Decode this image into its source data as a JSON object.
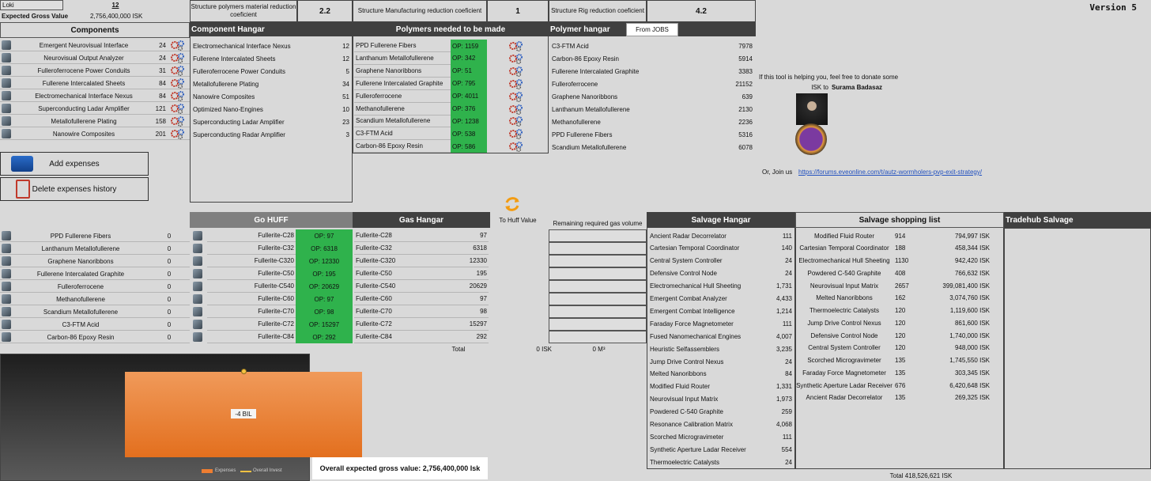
{
  "top": {
    "ship": "Loki",
    "count": 12,
    "expected_label": "Expected Gross Value",
    "expected_value": "2,756,400,000 ISK",
    "version": "Version 5"
  },
  "coefficients": [
    {
      "label": "Structure polymers material reduction coeficient",
      "value": 2.2
    },
    {
      "label": "Structure Manufacturing reduction coeficient",
      "value": 1
    },
    {
      "label": "Structure Rig reduction coeficient",
      "value": 4.2
    }
  ],
  "components": {
    "title": "Components",
    "rows": [
      [
        "Emergent Neurovisual Interface",
        24
      ],
      [
        "Neurovisual Output Analyzer",
        24
      ],
      [
        "Fulleroferrocene Power Conduits",
        31
      ],
      [
        "Fullerene Intercalated Sheets",
        84
      ],
      [
        "Electromechanical Interface Nexus",
        84
      ],
      [
        "Superconducting Ladar Amplifier",
        121
      ],
      [
        "Metallofullerene Plating",
        158
      ],
      [
        "Nanowire Composites",
        201
      ]
    ]
  },
  "buttons": [
    "Add expenses",
    "Delete expenses history"
  ],
  "component_hangar": {
    "title": "Component Hangar",
    "rows": [
      [
        "Electromechanical Interface Nexus",
        12
      ],
      [
        "Fullerene Intercalated Sheets",
        12
      ],
      [
        "Fulleroferrocene Power Conduits",
        5
      ],
      [
        "Metallofullerene Plating",
        34
      ],
      [
        "Nanowire Composites",
        51
      ],
      [
        "Optimized Nano-Engines",
        10
      ],
      [
        "Superconducting Ladar Amplifier",
        23
      ],
      [
        "Superconducting Radar Amplifier",
        3
      ]
    ]
  },
  "polymers_needed": {
    "title": "Polymers needed to be made",
    "rows": [
      [
        "PPD Fullerene Fibers",
        "OP: 1159"
      ],
      [
        "Lanthanum Metallofullerene",
        "OP: 342"
      ],
      [
        "Graphene Nanoribbons",
        "OP: 51"
      ],
      [
        "Fullerene Intercalated Graphite",
        "OP: 795"
      ],
      [
        "Fulleroferrocene",
        "OP: 4011"
      ],
      [
        "Methanofullerene",
        "OP: 376"
      ],
      [
        "Scandium Metallofullerene",
        "OP: 1238"
      ],
      [
        "C3-FTM Acid",
        "OP: 538"
      ],
      [
        "Carbon-86 Epoxy Resin",
        "OP: 586"
      ]
    ]
  },
  "polymer_hangar": {
    "title": "Polymer hangar",
    "button": "From JOBS",
    "rows": [
      [
        "C3-FTM Acid",
        7978
      ],
      [
        "Carbon-86 Epoxy Resin",
        5914
      ],
      [
        "Fullerene Intercalated Graphite",
        3383
      ],
      [
        "Fulleroferrocene",
        21152
      ],
      [
        "Graphene Nanoribbons",
        639
      ],
      [
        "Lanthanum Metallofullerene",
        2130
      ],
      [
        "Methanofullerene",
        2236
      ],
      [
        "PPD Fullerene Fibers",
        5316
      ],
      [
        "Scandium Metallofullerene",
        6078
      ]
    ]
  },
  "donate": {
    "line1": "If this tool is helping you, feel free to donate some",
    "line2": "ISK to",
    "name": "Surama Badasaz",
    "join": "Or, Join us",
    "link": "https://forums.eveonline.com/t/autz-wormholers-pvp-exit-strategy/"
  },
  "polymer_list": {
    "rows": [
      [
        "PPD Fullerene Fibers",
        0
      ],
      [
        "Lanthanum Metallofullerene",
        0
      ],
      [
        "Graphene Nanoribbons",
        0
      ],
      [
        "Fullerene Intercalated Graphite",
        0
      ],
      [
        "Fulleroferrocene",
        0
      ],
      [
        "Methanofullerene",
        0
      ],
      [
        "Scandium Metallofullerene",
        0
      ],
      [
        "C3-FTM Acid",
        0
      ],
      [
        "Carbon-86 Epoxy Resin",
        0
      ]
    ]
  },
  "go_huff": {
    "title": "Go HUFF",
    "rows": [
      [
        "Fullerite-C28",
        "OP: 97"
      ],
      [
        "Fullerite-C32",
        "OP: 6318"
      ],
      [
        "Fullerite-C320",
        "OP: 12330"
      ],
      [
        "Fullerite-C50",
        "OP: 195"
      ],
      [
        "Fullerite-C540",
        "OP: 20629"
      ],
      [
        "Fullerite-C60",
        "OP: 97"
      ],
      [
        "Fullerite-C70",
        "OP: 98"
      ],
      [
        "Fullerite-C72",
        "OP: 15297"
      ],
      [
        "Fullerite-C84",
        "OP: 292"
      ]
    ]
  },
  "gas_hangar": {
    "title": "Gas Hangar",
    "rows": [
      [
        "Fullerite-C28",
        97
      ],
      [
        "Fullerite-C32",
        6318
      ],
      [
        "Fullerite-C320",
        12330
      ],
      [
        "Fullerite-C50",
        195
      ],
      [
        "Fullerite-C540",
        20629
      ],
      [
        "Fullerite-C60",
        97
      ],
      [
        "Fullerite-C70",
        98
      ],
      [
        "Fullerite-C72",
        15297
      ],
      [
        "Fullerite-C84",
        292
      ]
    ]
  },
  "huff": {
    "to_huff": "To Huff Value",
    "remaining": "Remaining required gas volume",
    "total_label": "Total",
    "total_isk": "0 ISK",
    "total_volume": "0 M³"
  },
  "salvage_hangar": {
    "title": "Salvage Hangar",
    "rows": [
      [
        "Ancient Radar Decorrelator",
        111
      ],
      [
        "Cartesian Temporal Coordinator",
        140
      ],
      [
        "Central System Controller",
        24
      ],
      [
        "Defensive Control Node",
        24
      ],
      [
        "Electromechanical Hull Sheeting",
        "1,731"
      ],
      [
        "Emergent Combat Analyzer",
        "4,433"
      ],
      [
        "Emergent Combat Intelligence",
        "1,214"
      ],
      [
        "Faraday Force Magnetometer",
        111
      ],
      [
        "Fused Nanomechanical Engines",
        "4,007"
      ],
      [
        "Heuristic Selfassemblers",
        "3,235"
      ],
      [
        "Jump Drive Control Nexus",
        24
      ],
      [
        "Melted Nanoribbons",
        84
      ],
      [
        "Modified Fluid Router",
        "1,331"
      ],
      [
        "Neurovisual Input Matrix",
        "1,973"
      ],
      [
        "Powdered C-540 Graphite",
        259
      ],
      [
        "Resonance Calibration Matrix",
        "4,068"
      ],
      [
        "Scorched Microgravimeter",
        111
      ],
      [
        "Synthetic Aperture Ladar Receiver",
        554
      ],
      [
        "Thermoelectric Catalysts",
        24
      ]
    ]
  },
  "salvage_shopping": {
    "title": "Salvage shopping list",
    "total": "Total  418,526,621 ISK",
    "rows": [
      [
        "Modified Fluid Router",
        914,
        "794,997 ISK"
      ],
      [
        "Cartesian Temporal Coordinator",
        188,
        "458,344 ISK"
      ],
      [
        "Electromechanical Hull Sheeting",
        1130,
        "942,420 ISK"
      ],
      [
        "Powdered C-540 Graphite",
        408,
        "766,632 ISK"
      ],
      [
        "Neurovisual Input Matrix",
        2657,
        "399,081,400 ISK"
      ],
      [
        "Melted Nanoribbons",
        162,
        "3,074,760 ISK"
      ],
      [
        "Thermoelectric Catalysts",
        120,
        "1,119,600 ISK"
      ],
      [
        "Jump Drive Control Nexus",
        120,
        "861,600 ISK"
      ],
      [
        "Defensive Control Node",
        120,
        "1,740,000 ISK"
      ],
      [
        "Central System Controller",
        120,
        "948,000 ISK"
      ],
      [
        "Scorched Microgravimeter",
        135,
        "1,745,550 ISK"
      ],
      [
        "Faraday Force Magnetometer",
        135,
        "303,345 ISK"
      ],
      [
        "Synthetic Aperture Ladar Receiver",
        676,
        "6,420,648 ISK"
      ],
      [
        "Ancient Radar Decorrelator",
        135,
        "269,325 ISK"
      ]
    ]
  },
  "tradehub": {
    "title": "Tradehub Salvage"
  },
  "expense_chart": {
    "bar_label": "-4 BIL",
    "legend": [
      "Expenses",
      "Overall Invest"
    ]
  },
  "gross_box": "Overall expected gross value: 2,756,400,000 Isk"
}
